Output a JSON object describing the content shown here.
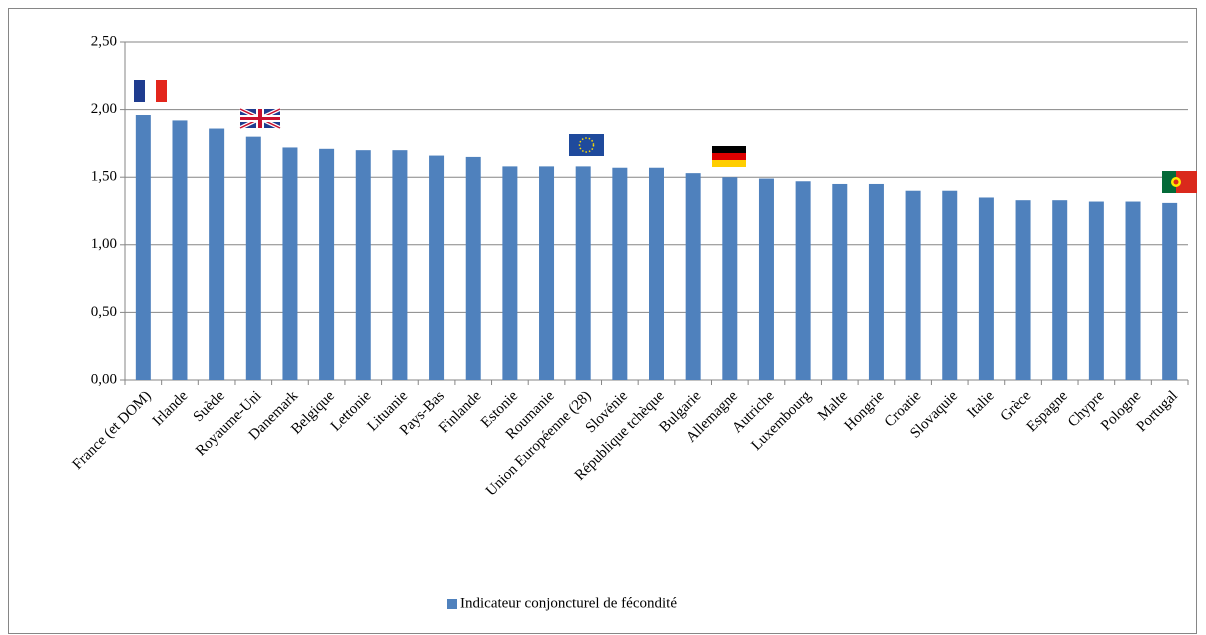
{
  "chart_data": {
    "type": "bar",
    "categories": [
      "France (et DOM)",
      "Irlande",
      "Suède",
      "Royaume-Uni",
      "Danemark",
      "Belgique",
      "Lettonie",
      "Lituanie",
      "Pays-Bas",
      "Finlande",
      "Estonie",
      "Roumanie",
      "Union Européenne (28)",
      "Slovénie",
      "République tchèque",
      "Bulgarie",
      "Allemagne",
      "Autriche",
      "Luxembourg",
      "Malte",
      "Hongrie",
      "Croatie",
      "Slovaquie",
      "Italie",
      "Grèce",
      "Espagne",
      "Chypre",
      "Pologne",
      "Portugal"
    ],
    "series": [
      {
        "name": "Indicateur conjoncturel de fécondité",
        "color": "#4f81bd",
        "values": [
          1.96,
          1.92,
          1.86,
          1.8,
          1.72,
          1.71,
          1.7,
          1.7,
          1.66,
          1.65,
          1.58,
          1.58,
          1.58,
          1.57,
          1.57,
          1.53,
          1.5,
          1.49,
          1.47,
          1.45,
          1.45,
          1.4,
          1.4,
          1.35,
          1.33,
          1.33,
          1.32,
          1.32,
          1.31
        ]
      }
    ],
    "ylim": [
      0,
      2.5
    ],
    "yticks": [
      {
        "value": 0,
        "label": "0,00"
      },
      {
        "value": 0.5,
        "label": "0,50"
      },
      {
        "value": 1,
        "label": "1,00"
      },
      {
        "value": 1.5,
        "label": "1,50"
      },
      {
        "value": 2,
        "label": "2,00"
      },
      {
        "value": 2.5,
        "label": "2,50"
      }
    ],
    "grid": true,
    "legend": "bottom"
  }
}
